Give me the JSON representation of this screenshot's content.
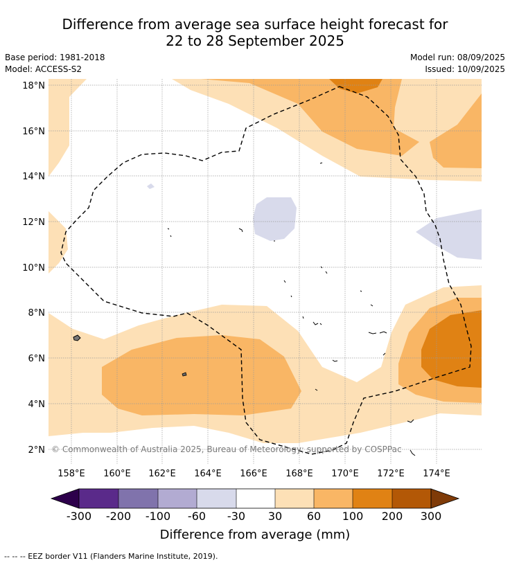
{
  "header": {
    "title_line1": "Difference from average sea surface height forecast for",
    "title_line2": "22 to 28 September 2025",
    "base_period": "Base period: 1981-2018",
    "model": "Model: ACCESS-S2",
    "model_run": "Model run: 08/09/2025",
    "issued": "Issued: 10/09/2025"
  },
  "map": {
    "lon_ticks": [
      "158°E",
      "160°E",
      "162°E",
      "164°E",
      "166°E",
      "168°E",
      "170°E",
      "172°E",
      "174°E"
    ],
    "lat_ticks": [
      "18°N",
      "16°N",
      "14°N",
      "12°N",
      "10°N",
      "8°N",
      "6°N",
      "4°N",
      "2°N"
    ],
    "copyright": "© Commonwealth of Australia 2025, Bureau of Meteorology; supported by COSPPac",
    "palette": {
      "c_neg300": "#2d004b",
      "c_neg200": "#5a2a8a",
      "c_neg100": "#8073ac",
      "c_neg60": "#b2abd2",
      "c_neg30": "#d8daeb",
      "c_30": "#fde0b6",
      "c_60": "#f9b665",
      "c_100": "#e08214",
      "c_200": "#b35806",
      "c_300": "#7f3b08"
    }
  },
  "colorbar": {
    "labels": [
      "-300",
      "-200",
      "-100",
      "-60",
      "-30",
      "30",
      "60",
      "100",
      "200",
      "300"
    ],
    "title": "Difference from average (mm)"
  },
  "footnote": "-- -- -- EEZ border V11 (Flanders Marine Institute, 2019)."
}
